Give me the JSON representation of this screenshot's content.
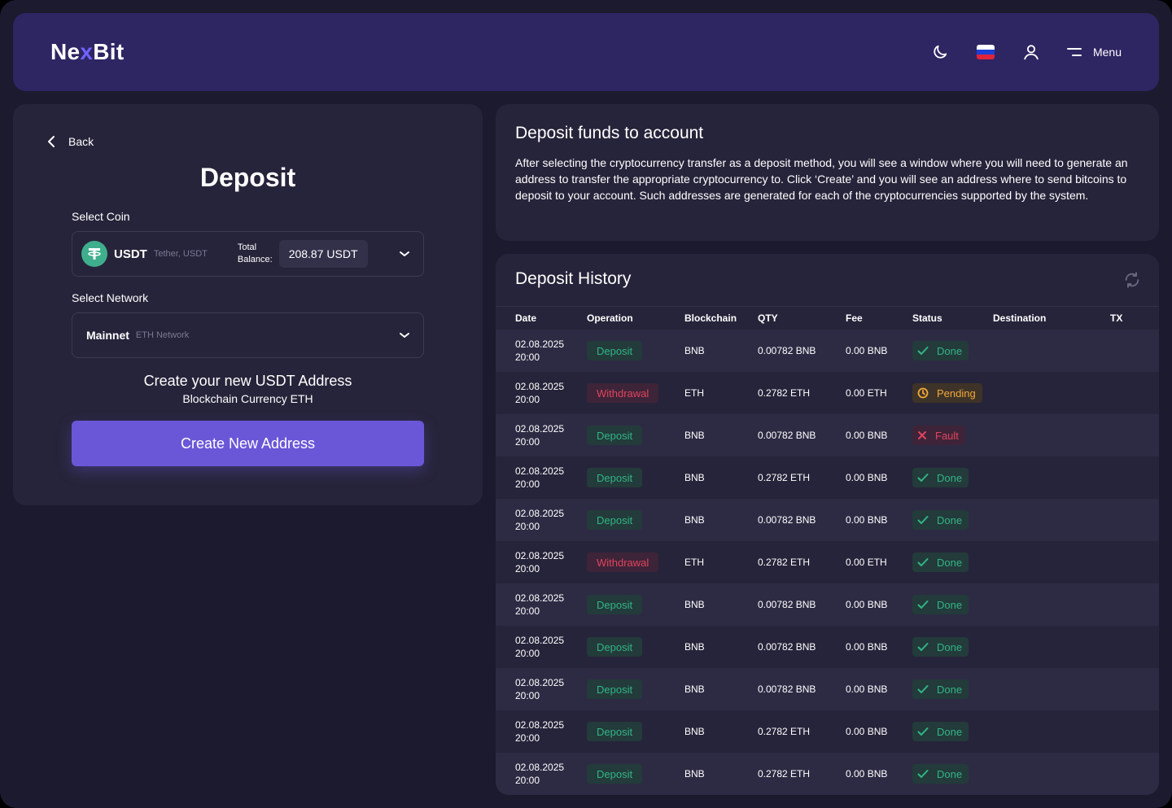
{
  "header": {
    "logo_prefix": "Ne",
    "logo_x": "x",
    "logo_suffix": "Bit",
    "menu_label": "Menu"
  },
  "deposit": {
    "back_label": "Back",
    "title": "Deposit",
    "select_coin_label": "Select Coin",
    "coin": {
      "code": "USDT",
      "sub": "Tether, USDT",
      "total_label_1": "Total",
      "total_label_2": "Balance:",
      "balance": "208.87 USDT"
    },
    "select_network_label": "Select Network",
    "network": {
      "name": "Mainnet",
      "sub": "ETH Network"
    },
    "create_heading": "Create your new USDT Address",
    "create_sub": "Blockchain Currency ETH",
    "create_button": "Create New Address"
  },
  "info": {
    "title": "Deposit funds to account",
    "text": "After selecting the cryptocurrency transfer as a deposit method, you will see a window where you will need to generate an address to transfer the appropriate cryptocurrency to. Click ‘Create’ and you will see an address where to send bitcoins to deposit to your account. Such addresses are generated for each of the cryptocurrencies supported by the system."
  },
  "history": {
    "title": "Deposit History",
    "columns": [
      "Date",
      "Operation",
      "Blockchain",
      "QTY",
      "Fee",
      "Status",
      "Destination",
      "TX"
    ],
    "rows": [
      {
        "date": "02.08.2025",
        "time": "20:00",
        "op": "Deposit",
        "op_kind": "dep",
        "chain": "BNB",
        "qty": "0.00782 BNB",
        "fee": "0.00 BNB",
        "status": "Done",
        "status_kind": "done"
      },
      {
        "date": "02.08.2025",
        "time": "20:00",
        "op": "Withdrawal",
        "op_kind": "wd",
        "chain": "ETH",
        "qty": "0.2782 ETH",
        "fee": "0.00 ETH",
        "status": "Pending",
        "status_kind": "pending"
      },
      {
        "date": "02.08.2025",
        "time": "20:00",
        "op": "Deposit",
        "op_kind": "dep",
        "chain": "BNB",
        "qty": "0.00782 BNB",
        "fee": "0.00 BNB",
        "status": "Fault",
        "status_kind": "fault"
      },
      {
        "date": "02.08.2025",
        "time": "20:00",
        "op": "Deposit",
        "op_kind": "dep",
        "chain": "BNB",
        "qty": "0.2782 ETH",
        "fee": "0.00 BNB",
        "status": "Done",
        "status_kind": "done"
      },
      {
        "date": "02.08.2025",
        "time": "20:00",
        "op": "Deposit",
        "op_kind": "dep",
        "chain": "BNB",
        "qty": "0.00782 BNB",
        "fee": "0.00 BNB",
        "status": "Done",
        "status_kind": "done"
      },
      {
        "date": "02.08.2025",
        "time": "20:00",
        "op": "Withdrawal",
        "op_kind": "wd",
        "chain": "ETH",
        "qty": "0.2782 ETH",
        "fee": "0.00 ETH",
        "status": "Done",
        "status_kind": "done"
      },
      {
        "date": "02.08.2025",
        "time": "20:00",
        "op": "Deposit",
        "op_kind": "dep",
        "chain": "BNB",
        "qty": "0.00782 BNB",
        "fee": "0.00 BNB",
        "status": "Done",
        "status_kind": "done"
      },
      {
        "date": "02.08.2025",
        "time": "20:00",
        "op": "Deposit",
        "op_kind": "dep",
        "chain": "BNB",
        "qty": "0.00782 BNB",
        "fee": "0.00 BNB",
        "status": "Done",
        "status_kind": "done"
      },
      {
        "date": "02.08.2025",
        "time": "20:00",
        "op": "Deposit",
        "op_kind": "dep",
        "chain": "BNB",
        "qty": "0.00782 BNB",
        "fee": "0.00 BNB",
        "status": "Done",
        "status_kind": "done"
      },
      {
        "date": "02.08.2025",
        "time": "20:00",
        "op": "Deposit",
        "op_kind": "dep",
        "chain": "BNB",
        "qty": "0.2782 ETH",
        "fee": "0.00 BNB",
        "status": "Done",
        "status_kind": "done"
      },
      {
        "date": "02.08.2025",
        "time": "20:00",
        "op": "Deposit",
        "op_kind": "dep",
        "chain": "BNB",
        "qty": "0.2782 ETH",
        "fee": "0.00 BNB",
        "status": "Done",
        "status_kind": "done"
      }
    ]
  },
  "colors": {
    "accent": "#6a57d8",
    "header_bg": "#2e2563",
    "panel_bg": "#26243a",
    "success": "#31b586",
    "danger": "#e0445f",
    "warning": "#f2a83a"
  },
  "icons": [
    "moon-icon",
    "russia-flag-icon",
    "user-icon",
    "menu-icon",
    "chevron-left-icon",
    "tether-icon",
    "chevron-down-icon",
    "refresh-icon",
    "check-icon",
    "clock-icon",
    "close-icon"
  ]
}
